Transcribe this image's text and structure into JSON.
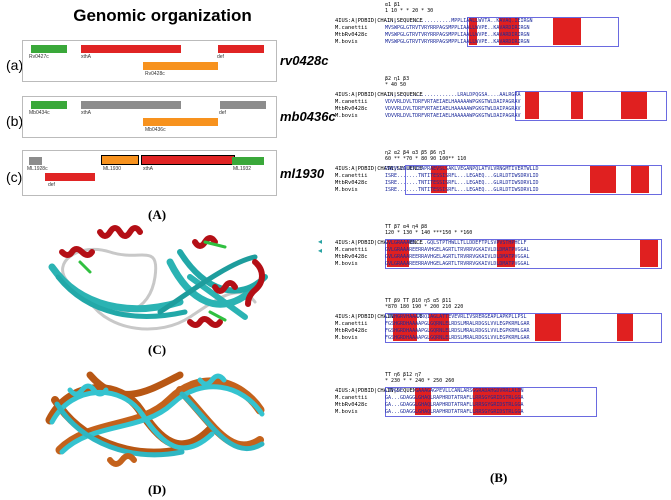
{
  "title": "Genomic organization",
  "rows": [
    {
      "letter": "(a)",
      "gene": "rv0428c",
      "genes": [
        {
          "label": "Rv0427c"
        },
        {
          "label": "xthA"
        },
        {
          "label": "Rv0428c"
        },
        {
          "label": "def"
        }
      ]
    },
    {
      "letter": "(b)",
      "gene": "mb0436c",
      "genes": [
        {
          "label": "Mb0434c"
        },
        {
          "label": "xthA"
        },
        {
          "label": "Mb0436c"
        },
        {
          "label": "def"
        }
      ]
    },
    {
      "letter": "(c)",
      "gene": "ml1930",
      "genes": [
        {
          "label": "ML1928c"
        },
        {
          "label": "def"
        },
        {
          "label": "ML1930"
        },
        {
          "label": "xthA"
        },
        {
          "label": "ML1932"
        }
      ]
    }
  ],
  "panels": {
    "a": "(A)",
    "b": "(B)",
    "c": "(C)",
    "d": "(D)"
  },
  "alignment": {
    "ref_label": "4IUS:A|PDBID|CHAIN|SEQUENCE",
    "species": [
      "4IUS:A|PDBID|CHAIN|SEQUENCE",
      "M.canettii",
      "MtbRv0428c",
      "M.bovis"
    ],
    "blocks": [
      {
        "ss": "α1                       β1",
        "num": "1          10 * *      20  *    30",
        "seqs": [
          "......................MPPLIAALLWVTA..KAVAQ.IEIRGN",
          "MVSWPGLGTRVTVRYRRPAGSMPPLIAALLWVPE..KAVARDIRIRGN",
          "MVSWPGLGTRVTVRYRRPAGSMPPLIAALLWVPE..KAVARDIRIRGN",
          "MVSWPGLGTRVTVRYRRPAGSMPPLIAALLWVPE..KAVARDIRIRGN"
        ]
      },
      {
        "ss": "β2                        η1    β3",
        "num": "*        40        50",
        "seqs": [
          "........................LRALDPQGSA....AALRGRA",
          "VDVVRLDVLTDRFVRTAEIAELHAAAAAWPGKGTWLDAIPAGRAV",
          "VDVVRLDVLTDRFVRTAEIAELHAAAAAWPGKGTWLDAIPAGRAV",
          "VDVVRLDVLTDRFVRTAEIAELHAAAAAWPGKGTWLDAIPAGRAV"
        ]
      },
      {
        "ss": "η2        α2           β4      α3       β5   β6   η3",
        "num": "60  **  *70 *    80       90     100**    110",
        "seqs": [
          "PAEVLVALKTIEAPRAEVSLSAKLVEGANPQLATVLVRNGMTIVERTWLLD",
          "ISRE.......TNTITESSISRFL...LEGAEQ...GLRLDTIWSDRVLID",
          "ISRE.......TNTITESSISRFL...LEGAEQ...GLRLDTIWSDRVLID",
          "ISRE.......TNTITESSISRFL...LEGAEQ...GLRLDTIWSDRVLID"
        ]
      },
      {
        "ss": "TT  β7         α4          η4 β8",
        "num": "120    *     130  *  140      ***150 *  *160",
        "seqs": [
          "GVLGRAAARE....GQLSTPTHWLLTLLDDEFTPLSVPVSTHPHCLF",
          "GVLGRAAAREERRAVHGELAGRTLTRVRRVGKAIVLDLDMATPVGGAL",
          "GVLGRAAAREERRAVHGELAGRTLTRVRRVGKAIVLDLDMATPVGGAL",
          "GVLGRAAAREERRAVHGELAGRTLTRVRRVGKAIVLDLDMATPVGGAL"
        ]
      },
      {
        "ss": "TT    β9      TT  β10   η5        α5          β11",
        "num": "*870   180   190 *   200     210         220",
        "seqs": [
          "LTRHGRVHAAAARQIAGLATTEVEVRLIVSRERGEAPLAPKPLLPSL",
          "FGSHGRDHAAAAPGLGQRNLELRDSLMRALRDGSLVVLEGPKRMLGAR",
          "FGSHGRDHAAAAPGLGQRNLELRDSLMRALRDGSLVVLEGPKRMLGAR",
          "FGSHGRDHAAAAPGLGQRNLELRDSLMRALRDGSLVVLEGPKRMLGAR"
        ]
      },
      {
        "ss": "TT        η6        β12    η7",
        "num": "*  230 *    *       240  *    250       260",
        "seqs": [
          "LTPGDE....GAAAGAGPEVLLCANLARSGGRADAHGDVRRLALDN",
          "GA...GDAGGLGHAQLRAPHRDTATRAFLLRRSGYGRIDSTRLGGA",
          "GA...GDAGGLGHAQLRAPHRDTATRAFLLRRSGYGRIDSTRLGGA",
          "GA...GDAGGLGHAQLRAPHRDTATRAFLLRRSGYGRIDSTRLGGA"
        ]
      }
    ]
  }
}
